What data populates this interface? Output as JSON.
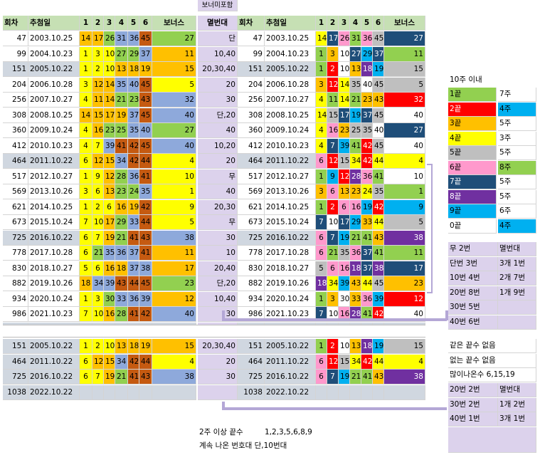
{
  "colors": {
    "1": "#ffff00",
    "2": "#ffc000",
    "3": "#92d050",
    "4": "#5b9bd5",
    "5": "#c55a11",
    "6": "#f4b084",
    "y": "#ffff00",
    "o": "#f4a41c",
    "g": "#92d050",
    "b": "#8ea9db",
    "w": "#ffffff",
    "br": "#c55a11",
    "Y": "#ffff00",
    "R": "#ff0000",
    "G": "#a9a9a9",
    "C": "#00b0f0",
    "P": "#ff99cc",
    "D": "#7030a0",
    "T": "#1f4e79",
    "L": "#92d050",
    "O": "#ffc000",
    "W": "#ffffff",
    "B": "#00b0f0",
    "V": "#e6a0ee",
    "K": "#000000"
  },
  "top_label": "보너미포함",
  "headers": {
    "round": "회차",
    "date": "추첨일",
    "n1": "1",
    "n2": "2",
    "n3": "3",
    "n4": "4",
    "n5": "5",
    "n6": "6",
    "bonus": "보너스",
    "band": "멸번대"
  },
  "left_rows": [
    {
      "round": "47",
      "date": "2003.10.25",
      "nums": [
        "14",
        "17",
        "26",
        "31",
        "36",
        "45"
      ],
      "bonus": "27",
      "band": "단"
    },
    {
      "round": "99",
      "date": "2004.10.23",
      "nums": [
        "1",
        "3",
        "10",
        "27",
        "29",
        "37"
      ],
      "bonus": "11",
      "band": "10,40"
    },
    {
      "round": "151",
      "date": "2005.10.22",
      "nums": [
        "1",
        "2",
        "10",
        "13",
        "18",
        "19"
      ],
      "bonus": "15",
      "band": "20,30,40"
    },
    {
      "round": "204",
      "date": "2006.10.28",
      "nums": [
        "3",
        "12",
        "14",
        "35",
        "40",
        "45"
      ],
      "bonus": "5",
      "band": "20"
    },
    {
      "round": "256",
      "date": "2007.10.27",
      "nums": [
        "4",
        "11",
        "14",
        "21",
        "23",
        "43"
      ],
      "bonus": "32",
      "band": "30"
    },
    {
      "round": "308",
      "date": "2008.10.25",
      "nums": [
        "14",
        "15",
        "17",
        "19",
        "37",
        "45"
      ],
      "bonus": "40",
      "band": "단,20"
    },
    {
      "round": "360",
      "date": "2009.10.24",
      "nums": [
        "4",
        "16",
        "23",
        "25",
        "35",
        "40"
      ],
      "bonus": "27",
      "band": "40"
    },
    {
      "round": "412",
      "date": "2010.10.23",
      "nums": [
        "4",
        "7",
        "39",
        "41",
        "42",
        "45"
      ],
      "bonus": "40",
      "band": "10,20"
    },
    {
      "round": "464",
      "date": "2011.10.22",
      "nums": [
        "6",
        "12",
        "15",
        "34",
        "42",
        "44"
      ],
      "bonus": "4",
      "band": "20"
    },
    {
      "round": "517",
      "date": "2012.10.27",
      "nums": [
        "1",
        "9",
        "12",
        "28",
        "36",
        "41"
      ],
      "bonus": "10",
      "band": "무"
    },
    {
      "round": "569",
      "date": "2013.10.26",
      "nums": [
        "3",
        "6",
        "13",
        "23",
        "24",
        "35"
      ],
      "bonus": "1",
      "band": "40"
    },
    {
      "round": "621",
      "date": "2014.10.25",
      "nums": [
        "1",
        "2",
        "6",
        "16",
        "19",
        "42"
      ],
      "bonus": "9",
      "band": "20,30"
    },
    {
      "round": "673",
      "date": "2015.10.24",
      "nums": [
        "7",
        "10",
        "17",
        "29",
        "33",
        "44"
      ],
      "bonus": "5",
      "band": "무"
    },
    {
      "round": "725",
      "date": "2016.10.22",
      "nums": [
        "6",
        "7",
        "19",
        "21",
        "41",
        "43"
      ],
      "bonus": "38",
      "band": "30"
    },
    {
      "round": "778",
      "date": "2017.10.28",
      "nums": [
        "6",
        "21",
        "35",
        "36",
        "37",
        "41"
      ],
      "bonus": "11",
      "band": "10"
    },
    {
      "round": "830",
      "date": "2018.10.27",
      "nums": [
        "5",
        "6",
        "16",
        "18",
        "37",
        "38"
      ],
      "bonus": "17",
      "band": "20,40"
    },
    {
      "round": "882",
      "date": "2019.10.26",
      "nums": [
        "18",
        "34",
        "39",
        "43",
        "44",
        "45"
      ],
      "bonus": "23",
      "band": "단,20"
    },
    {
      "round": "934",
      "date": "2020.10.24",
      "nums": [
        "1",
        "3",
        "30",
        "33",
        "36",
        "39"
      ],
      "bonus": "12",
      "band": "10,40"
    },
    {
      "round": "986",
      "date": "2021.10.23",
      "nums": [
        "7",
        "10",
        "16",
        "28",
        "41",
        "42"
      ],
      "bonus": "40",
      "band": "30"
    },
    {
      "round": "1038",
      "date": "2022.10.22",
      "nums": [
        "",
        "",
        "",
        "",
        "",
        ""
      ],
      "bonus": "",
      "band": ""
    }
  ],
  "bottom_rows": [
    {
      "round": "151",
      "date": "2005.10.22",
      "nums": [
        "1",
        "2",
        "10",
        "13",
        "18",
        "19"
      ],
      "bonus": "15",
      "band": "20,30,40"
    },
    {
      "round": "464",
      "date": "2011.10.22",
      "nums": [
        "6",
        "12",
        "15",
        "34",
        "42",
        "44"
      ],
      "bonus": "4",
      "band": "20"
    },
    {
      "round": "725",
      "date": "2016.10.22",
      "nums": [
        "6",
        "7",
        "19",
        "21",
        "41",
        "43"
      ],
      "bonus": "38",
      "band": "30"
    },
    {
      "round": "1038",
      "date": "2022.10.22",
      "nums": [
        "",
        "",
        "",
        "",
        "",
        ""
      ],
      "bonus": "",
      "band": ""
    }
  ],
  "legend": {
    "title": "10주 이내",
    "rows": [
      {
        "a": "1끝",
        "ac": "#92d050",
        "b": "7주",
        "bc": "#ffffff"
      },
      {
        "a": "2끝",
        "ac": "#ff0000",
        "b": "4주",
        "bc": "#00b0f0"
      },
      {
        "a": "3끝",
        "ac": "#ffc000",
        "b": "5주",
        "bc": "#ffffff"
      },
      {
        "a": "4끝",
        "ac": "#ffff00",
        "b": "3주",
        "bc": "#ffffff"
      },
      {
        "a": "5끝",
        "ac": "#bfbfbf",
        "b": "5주",
        "bc": "#ffffff"
      },
      {
        "a": "6끝",
        "ac": "#ff99cc",
        "b": "8주",
        "bc": "#92d050"
      },
      {
        "a": "7끝",
        "ac": "#1f4e79",
        "b": "5주",
        "bc": "#ffffff"
      },
      {
        "a": "8끝",
        "ac": "#7030a0",
        "b": "5주",
        "bc": "#ffffff"
      },
      {
        "a": "9끝",
        "ac": "#00b0f0",
        "b": "6주",
        "bc": "#ffffff"
      },
      {
        "a": "0끝",
        "ac": "#ffffff",
        "b": "4주",
        "bc": "#00b0f0"
      }
    ]
  },
  "stats1": [
    [
      "무 2번",
      "멸번대"
    ],
    [
      "단번 3번",
      "3개 1번"
    ],
    [
      "10번 4번",
      "2개 7번"
    ],
    [
      "20번 8번",
      "1개 9번"
    ],
    [
      "30번 5번",
      ""
    ],
    [
      "40번 6번",
      ""
    ]
  ],
  "notes": [
    "같은 끝수 없음",
    "없는 끝수 없음",
    "많이나온수 6,15,19"
  ],
  "stats2": [
    [
      "20번 2번",
      "멸번대"
    ],
    [
      "30번 2번",
      "1개 2번"
    ],
    [
      "40번 1번",
      "3개 1번"
    ]
  ],
  "footer1_label": "2주 이상 끝수",
  "footer1_value": "1,2,3,5,6,8,9",
  "footer2": "계속 나온 번호대 단,10번대"
}
